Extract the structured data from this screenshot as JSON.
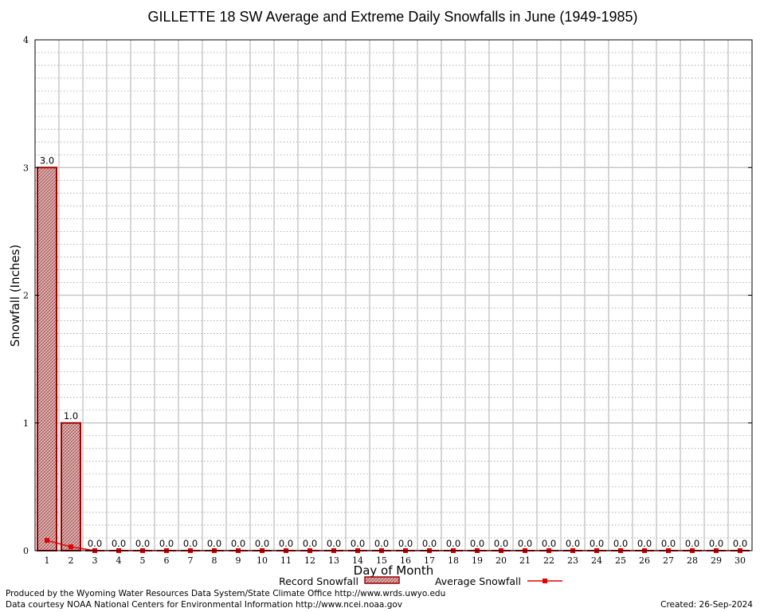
{
  "chart_data": {
    "type": "bar",
    "title": "GILLETTE 18 SW Average and Extreme Daily Snowfalls in June (1949-1985)",
    "xlabel": "Day of Month",
    "ylabel": "Snowfall (Inches)",
    "ylim": [
      0,
      4
    ],
    "yticks": [
      "0",
      "1",
      "2",
      "3",
      "4"
    ],
    "categories": [
      "1",
      "2",
      "3",
      "4",
      "5",
      "6",
      "7",
      "8",
      "9",
      "10",
      "11",
      "12",
      "13",
      "14",
      "15",
      "16",
      "17",
      "18",
      "19",
      "20",
      "21",
      "22",
      "23",
      "24",
      "25",
      "26",
      "27",
      "28",
      "29",
      "30"
    ],
    "series": [
      {
        "name": "Record Snowfall",
        "kind": "bar",
        "values": [
          3.0,
          1.0,
          0,
          0,
          0,
          0,
          0,
          0,
          0,
          0,
          0,
          0,
          0,
          0,
          0,
          0,
          0,
          0,
          0,
          0,
          0,
          0,
          0,
          0,
          0,
          0,
          0,
          0,
          0,
          0
        ],
        "labels": [
          "3.0",
          "1.0",
          "0.0",
          "0.0",
          "0.0",
          "0.0",
          "0.0",
          "0.0",
          "0.0",
          "0.0",
          "0.0",
          "0.0",
          "0.0",
          "0.0",
          "0.0",
          "0.0",
          "0.0",
          "0.0",
          "0.0",
          "0.0",
          "0.0",
          "0.0",
          "0.0",
          "0.0",
          "0.0",
          "0.0",
          "0.0",
          "0.0",
          "0.0",
          "0.0"
        ]
      },
      {
        "name": "Average Snowfall",
        "kind": "line",
        "values": [
          0.08,
          0.03,
          0,
          0,
          0,
          0,
          0,
          0,
          0,
          0,
          0,
          0,
          0,
          0,
          0,
          0,
          0,
          0,
          0,
          0,
          0,
          0,
          0,
          0,
          0,
          0,
          0,
          0,
          0,
          0
        ]
      }
    ],
    "grid": true,
    "legend_position": "bottom",
    "colors": {
      "record_fill": "#d7b8b8",
      "record_edge": "#a00000",
      "average_line": "#e00000",
      "grid": "#c8c8c8",
      "minor_grid": "#a0a0a0"
    }
  },
  "footer": {
    "credit1": "Produced by the Wyoming Water Resources Data System/State Climate Office http://www.wrds.uwyo.edu",
    "credit2": "Data courtesy NOAA National Centers for Environmental Information http://www.ncei.noaa.gov",
    "created": "Created:  26-Sep-2024"
  }
}
